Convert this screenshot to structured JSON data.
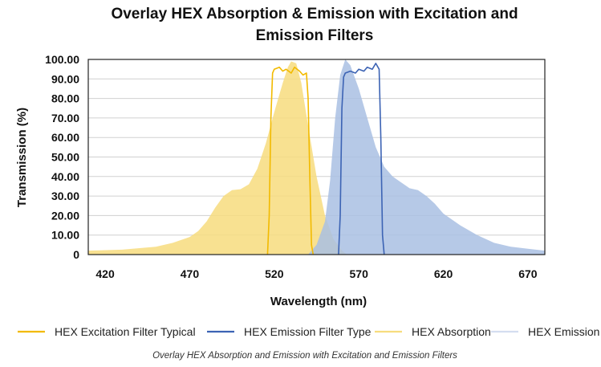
{
  "chart_data": {
    "type": "area",
    "title_line1": "Overlay HEX Absorption & Emission with Excitation and",
    "title_line2": "Emission Filters",
    "xlabel": "Wavelength (nm)",
    "ylabel": "Transmission (%)",
    "xlim": [
      410,
      680
    ],
    "ylim": [
      0,
      100
    ],
    "x_ticks": [
      420,
      470,
      520,
      570,
      620,
      670
    ],
    "y_ticks": [
      {
        "value": 0,
        "label": "0"
      },
      {
        "value": 10,
        "label": "10.00"
      },
      {
        "value": 20,
        "label": "20.00"
      },
      {
        "value": 30,
        "label": "30.00"
      },
      {
        "value": 40,
        "label": "40.00"
      },
      {
        "value": 50,
        "label": "50.00"
      },
      {
        "value": 60,
        "label": "60.00"
      },
      {
        "value": 70,
        "label": "70.00"
      },
      {
        "value": 80,
        "label": "80.00"
      },
      {
        "value": 90,
        "label": "90.00"
      },
      {
        "value": 100,
        "label": "100.00"
      }
    ],
    "grid": true,
    "series": [
      {
        "name": "HEX Absorption",
        "kind": "area",
        "color": "#F7DC7E",
        "opacity": 0.85,
        "x": [
          410,
          430,
          450,
          460,
          470,
          475,
          480,
          485,
          490,
          495,
          500,
          505,
          510,
          515,
          520,
          525,
          528,
          530,
          533,
          536,
          540,
          545,
          550,
          555,
          560,
          563
        ],
        "y": [
          2,
          2.5,
          4,
          6,
          9,
          12,
          17,
          24,
          30,
          33,
          33.5,
          36,
          44,
          57,
          73,
          88,
          96,
          99,
          98,
          88,
          66,
          40,
          20,
          8,
          2,
          0
        ]
      },
      {
        "name": "HEX Emission",
        "kind": "area",
        "color": "#A9BFE3",
        "opacity": 0.85,
        "x": [
          540,
          545,
          550,
          553,
          556,
          559,
          562,
          565,
          570,
          575,
          580,
          585,
          590,
          595,
          600,
          605,
          610,
          615,
          620,
          630,
          640,
          650,
          660,
          670,
          680
        ],
        "y": [
          0,
          5,
          17,
          38,
          70,
          92,
          100,
          97,
          85,
          70,
          55,
          45,
          40,
          37,
          34,
          33,
          30,
          26,
          21,
          15,
          10,
          6,
          4,
          3,
          2
        ]
      },
      {
        "name": "HEX Excitation Filter Typical",
        "kind": "line",
        "color": "#F2BA00",
        "x": [
          516,
          517,
          518,
          519,
          520,
          523,
          525,
          527,
          530,
          532,
          535,
          537,
          539,
          540,
          541,
          542,
          543
        ],
        "y": [
          0,
          20,
          70,
          93,
          95,
          96,
          94,
          95,
          93,
          96,
          94,
          92,
          93,
          80,
          40,
          5,
          0
        ]
      },
      {
        "name": "HEX Emission Filter Type",
        "kind": "line",
        "color": "#3C63B4",
        "x": [
          558,
          559,
          560,
          561,
          562,
          565,
          568,
          570,
          573,
          575,
          578,
          580,
          582,
          583,
          584,
          585
        ],
        "y": [
          0,
          20,
          75,
          91,
          93,
          94,
          93,
          95,
          94,
          96,
          95,
          98,
          95,
          60,
          10,
          0
        ]
      }
    ],
    "legend": {
      "placement": "bottom",
      "items": [
        {
          "label": "HEX Excitation Filter Typical",
          "color": "#F2BA00"
        },
        {
          "label": "HEX Emission Filter Type",
          "color": "#3C63B4"
        },
        {
          "label": "HEX Absorption",
          "color": "#F7DC7E"
        },
        {
          "label": "HEX Emission",
          "color": "#D4DDF0"
        }
      ]
    },
    "caption": "Overlay HEX Absorption and Emission with Excitation and Emission Filters"
  }
}
